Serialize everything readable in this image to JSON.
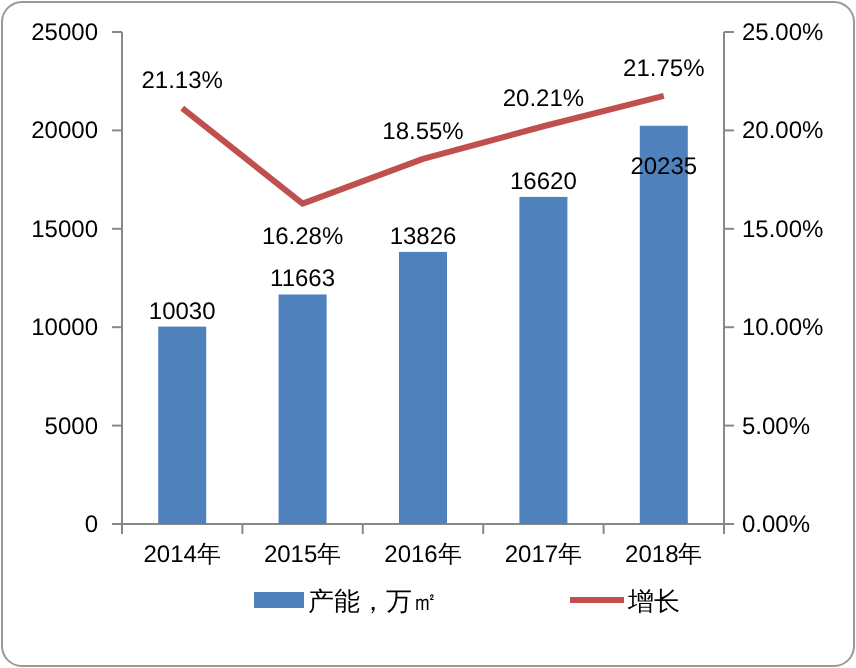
{
  "chart_data": {
    "type": "bar",
    "categories": [
      "2014年",
      "2015年",
      "2016年",
      "2017年",
      "2018年"
    ],
    "series": [
      {
        "name": "产能，万㎡",
        "color": "#4f81bd",
        "values": [
          10030,
          11663,
          13826,
          16620,
          20235
        ],
        "value_labels": [
          "10030",
          "11663",
          "13826",
          "16620",
          "20235"
        ]
      },
      {
        "name": "增长",
        "type": "line",
        "axis": "y2",
        "color": "#c0504d",
        "values": [
          21.13,
          16.28,
          18.55,
          20.21,
          21.75
        ],
        "value_labels": [
          "21.13%",
          "16.28%",
          "18.55%",
          "20.21%",
          "21.75%"
        ]
      }
    ],
    "ylim": [
      0,
      25000
    ],
    "yticks": [
      0,
      5000,
      10000,
      15000,
      20000,
      25000
    ],
    "y2lim": [
      0,
      25
    ],
    "y2ticks": [
      {
        "value": 0,
        "label": "0.00%"
      },
      {
        "value": 5,
        "label": "5.00%"
      },
      {
        "value": 10,
        "label": "10.00%"
      },
      {
        "value": 15,
        "label": "15.00%"
      },
      {
        "value": 20,
        "label": "20.00%"
      },
      {
        "value": 25,
        "label": "25.00%"
      }
    ],
    "legend": "bottom",
    "marker": "none",
    "grid": false
  }
}
